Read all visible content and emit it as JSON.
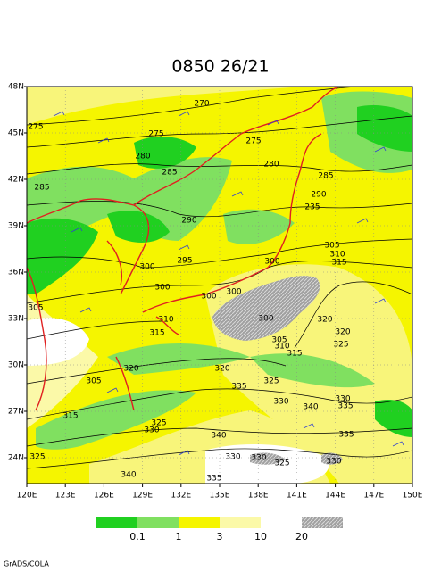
{
  "title": "0850 26/21",
  "map": {
    "x_labels": [
      "120E",
      "123E",
      "126E",
      "129E",
      "132E",
      "135E",
      "138E",
      "141E",
      "144E",
      "147E",
      "150E"
    ],
    "y_labels": [
      "48N",
      "45N",
      "42N",
      "39N",
      "36N",
      "33N",
      "30N",
      "27N",
      "24N"
    ],
    "contour_labels": [
      "270",
      "275",
      "275",
      "275",
      "280",
      "280",
      "285",
      "285",
      "285",
      "290",
      "235",
      "290",
      "295",
      "300",
      "300",
      "305",
      "310",
      "315",
      "300",
      "300",
      "300",
      "305",
      "310",
      "300",
      "315",
      "320",
      "320",
      "325",
      "305",
      "310",
      "315",
      "320",
      "320",
      "305",
      "325",
      "335",
      "330",
      "340",
      "330",
      "335",
      "315",
      "325",
      "330",
      "340",
      "335",
      "325",
      "330",
      "330",
      "325",
      "330",
      "340",
      "335"
    ]
  },
  "legend": {
    "labels": [
      "0.1",
      "1",
      "3",
      "10",
      "20"
    ]
  },
  "footer": "GrADS/COLA"
}
